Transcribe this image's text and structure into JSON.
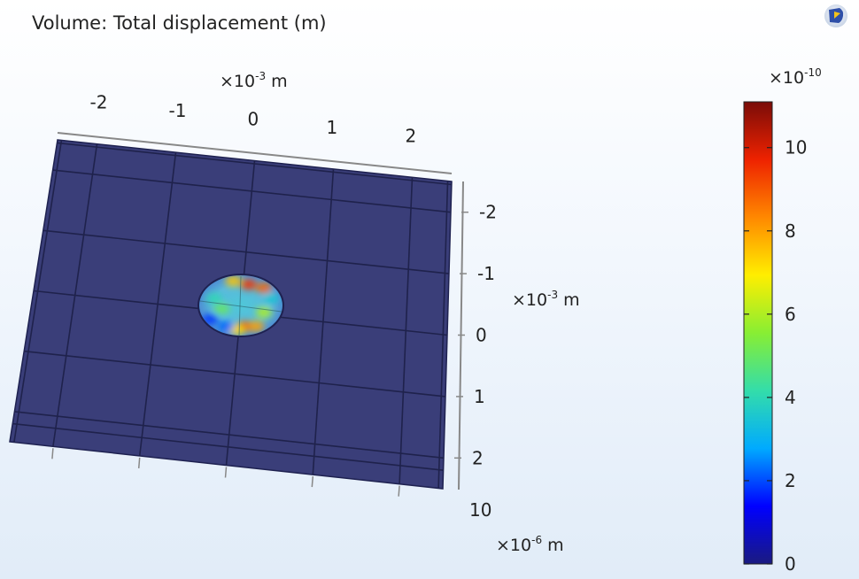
{
  "plot": {
    "title": "Volume: Total displacement (m)"
  },
  "toolbar": {
    "icon": "comsol-logo-icon"
  },
  "chart_data": {
    "type": "heatmap",
    "title": "Volume: Total displacement (m)",
    "quantity": "Total displacement",
    "unit": "m",
    "axes": {
      "x": {
        "multiplier_base": "×10",
        "multiplier_exp": "-3",
        "unit": "m",
        "ticks": [
          "-2",
          "-1",
          "0",
          "1",
          "2"
        ],
        "range": [
          -2.5,
          2.5
        ]
      },
      "y": {
        "multiplier_base": "×10",
        "multiplier_exp": "-3",
        "unit": "m",
        "ticks": [
          "-2",
          "-1",
          "0",
          "1",
          "2"
        ],
        "range": [
          -2.5,
          2.5
        ]
      },
      "z": {
        "multiplier_base": "×10",
        "multiplier_exp": "-6",
        "unit": "m",
        "ticks": [
          "10"
        ]
      }
    },
    "colorbar": {
      "multiplier_base": "×10",
      "multiplier_exp": "-10",
      "range": [
        0,
        11.1
      ],
      "ticks": [
        "0",
        "2",
        "4",
        "6",
        "8",
        "10"
      ],
      "tick_values": [
        0,
        2,
        4,
        6,
        8,
        10
      ],
      "colormap": "rainbow",
      "colors": [
        "#1a1a80",
        "#0000ff",
        "#00aaff",
        "#33ddaa",
        "#88ee33",
        "#ffee00",
        "#ff8800",
        "#ee2200",
        "#7a0c08"
      ]
    },
    "regions": [
      {
        "name": "plate",
        "value": 0,
        "color": "#3a3e79"
      },
      {
        "name": "disk",
        "center": [
          0,
          0
        ],
        "radius_x": 0.5,
        "radius_y": 0.4
      }
    ],
    "hotspots": [
      {
        "x": 0.1,
        "y": -0.3,
        "value": 9.5
      },
      {
        "x": 0.3,
        "y": -0.25,
        "value": 8.8
      },
      {
        "x": -0.1,
        "y": -0.35,
        "value": 7.5
      },
      {
        "x": -0.25,
        "y": 0.05,
        "value": 5.0
      },
      {
        "x": 0.05,
        "y": 0.3,
        "value": 9.0
      },
      {
        "x": -0.05,
        "y": 0.35,
        "value": 7.2
      },
      {
        "x": 0.3,
        "y": 0.1,
        "value": 6.0
      },
      {
        "x": -0.35,
        "y": -0.1,
        "value": 4.0
      },
      {
        "x": 0.2,
        "y": 0.3,
        "value": 8.0
      },
      {
        "x": -0.2,
        "y": 0.3,
        "value": 2.2
      },
      {
        "x": -0.4,
        "y": 0.2,
        "value": 1.8
      },
      {
        "x": 0.4,
        "y": -0.1,
        "value": 3.5
      }
    ],
    "grid": true
  }
}
